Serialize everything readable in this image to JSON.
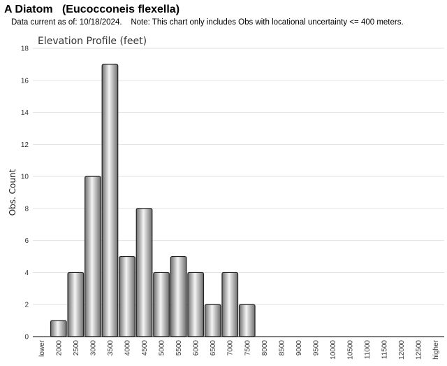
{
  "header": {
    "title": "A Diatom   (Eucocconeis flexella)",
    "note": "Data current as of: 10/18/2024.    Note: This chart only includes Obs with locational uncertainty <= 400 meters."
  },
  "chart_data": {
    "type": "bar",
    "title": "Elevation Profile (feet)",
    "xlabel": "",
    "ylabel": "Obs. Count",
    "ylim": [
      0,
      18
    ],
    "yticks": [
      0,
      2,
      4,
      6,
      8,
      10,
      12,
      14,
      16,
      18
    ],
    "grid": true,
    "categories": [
      "lower",
      "2000",
      "2500",
      "3000",
      "3500",
      "4000",
      "4500",
      "5000",
      "5500",
      "6000",
      "6500",
      "7000",
      "7500",
      "8000",
      "8500",
      "9000",
      "9500",
      "10000",
      "10500",
      "11000",
      "11500",
      "12000",
      "12500",
      "higher"
    ],
    "values": [
      0,
      1,
      4,
      10,
      17,
      5,
      8,
      4,
      5,
      4,
      2,
      4,
      2,
      0,
      0,
      0,
      0,
      0,
      0,
      0,
      0,
      0,
      0,
      0
    ],
    "bar_color": "#b0b0b0"
  }
}
